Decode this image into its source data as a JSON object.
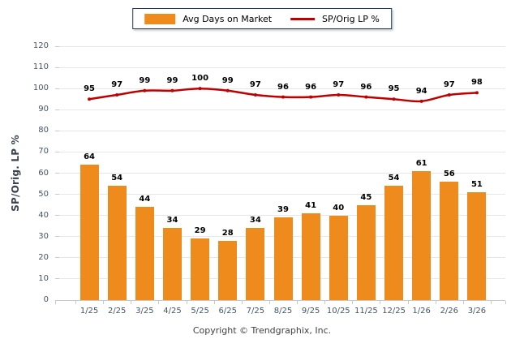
{
  "legend": {
    "bar_label": "Avg Days on Market",
    "line_label": "SP/Orig LP %"
  },
  "footer": {
    "copyright": "Copyright © Trendgraphix, Inc."
  },
  "colors": {
    "bar": "#EF8B1D",
    "line": "#C00000",
    "legend_border": "#17375E",
    "gridline": "#E7E7E7",
    "axis": "#C9C9C9",
    "tick_label": "#44546A",
    "value_label": "#000000",
    "title": "#39424E",
    "copyright": "#404040"
  },
  "chart_data": {
    "type": "bar+line",
    "categories": [
      "1/25",
      "2/25",
      "3/25",
      "4/25",
      "5/25",
      "6/25",
      "7/25",
      "8/25",
      "9/25",
      "10/25",
      "11/25",
      "12/25",
      "1/26",
      "2/26",
      "3/26"
    ],
    "series": [
      {
        "name": "Avg Days on Market",
        "type": "bar",
        "color": "#EF8B1D",
        "values": [
          64,
          54,
          44,
          34,
          29,
          28,
          34,
          39,
          41,
          40,
          45,
          54,
          61,
          56,
          51
        ]
      },
      {
        "name": "SP/Orig LP %",
        "type": "line",
        "color": "#C00000",
        "values": [
          95,
          97,
          99,
          99,
          100,
          99,
          97,
          96,
          96,
          97,
          96,
          95,
          94,
          97,
          98
        ]
      }
    ],
    "ylabel": "SP/Orig. LP %",
    "ylim": [
      0,
      120
    ],
    "yticks": [
      0,
      10,
      20,
      30,
      40,
      50,
      60,
      70,
      80,
      90,
      100,
      110,
      120
    ],
    "grid": true,
    "legend_position": "top",
    "data_labels": true
  }
}
